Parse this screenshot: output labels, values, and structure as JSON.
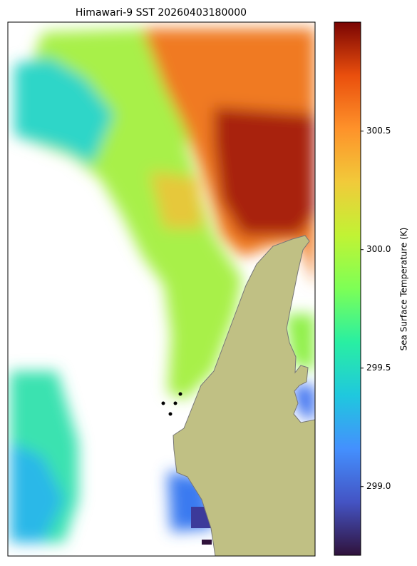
{
  "map": {
    "title": "Himawari-9 SST 20260403180000",
    "colorbar": {
      "label": "Sea Surface Temperature (K)",
      "lim": [
        298.71,
        300.96
      ],
      "ticks": [
        {
          "value": 299,
          "label": "299.0"
        },
        299.5,
        {
          "value": 300,
          "label": "300.0"
        },
        300.5
      ]
    }
  }
}
